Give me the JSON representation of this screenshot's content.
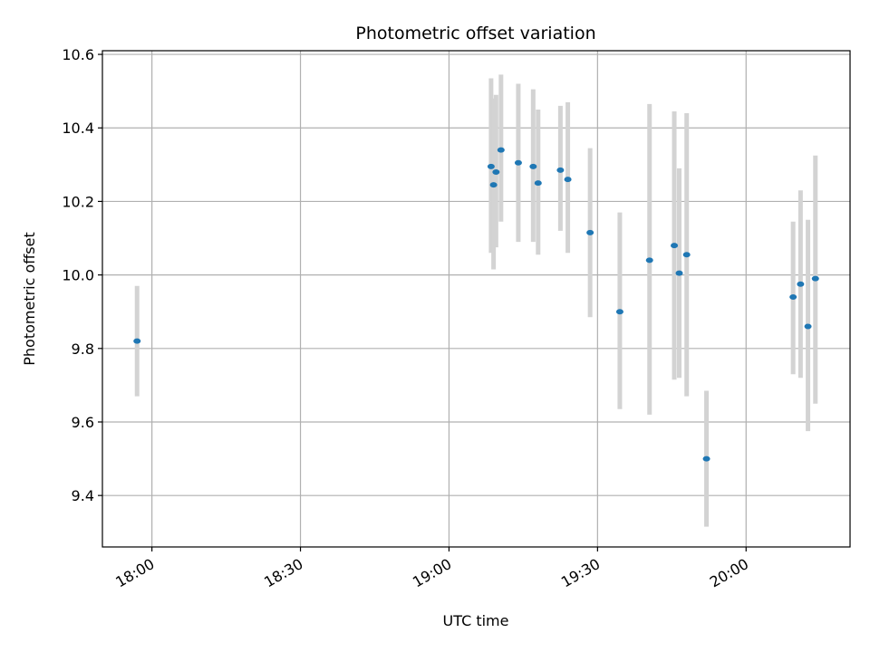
{
  "chart_data": {
    "type": "scatter",
    "title": "Photometric offset variation",
    "xlabel": "UTC time",
    "ylabel": "Photometric offset",
    "xlim": [
      "17:50",
      "20:21"
    ],
    "ylim": [
      9.26,
      10.61
    ],
    "x_ticks": [
      "18:00",
      "18:30",
      "19:00",
      "19:30",
      "20:00"
    ],
    "y_ticks": [
      "9.4",
      "9.6",
      "9.8",
      "10.0",
      "10.2",
      "10.4",
      "10.6"
    ],
    "grid": true,
    "marker_color": "#1f77b4",
    "errorbar_color": "#d3d3d3",
    "points": [
      {
        "x": "17:57",
        "y": 9.82,
        "ylow": 9.67,
        "yhigh": 9.97
      },
      {
        "x": "19:08:30",
        "y": 10.295,
        "ylow": 10.06,
        "yhigh": 10.535
      },
      {
        "x": "19:09",
        "y": 10.245,
        "ylow": 10.015,
        "yhigh": 10.48
      },
      {
        "x": "19:09:30",
        "y": 10.28,
        "ylow": 10.075,
        "yhigh": 10.49
      },
      {
        "x": "19:10:30",
        "y": 10.34,
        "ylow": 10.145,
        "yhigh": 10.545
      },
      {
        "x": "19:14",
        "y": 10.305,
        "ylow": 10.09,
        "yhigh": 10.52
      },
      {
        "x": "19:17",
        "y": 10.295,
        "ylow": 10.09,
        "yhigh": 10.505
      },
      {
        "x": "19:18",
        "y": 10.25,
        "ylow": 10.055,
        "yhigh": 10.45
      },
      {
        "x": "19:22:30",
        "y": 10.285,
        "ylow": 10.12,
        "yhigh": 10.46
      },
      {
        "x": "19:24",
        "y": 10.26,
        "ylow": 10.06,
        "yhigh": 10.47
      },
      {
        "x": "19:28:30",
        "y": 10.115,
        "ylow": 9.885,
        "yhigh": 10.345
      },
      {
        "x": "19:34:30",
        "y": 9.9,
        "ylow": 9.635,
        "yhigh": 10.17
      },
      {
        "x": "19:40:30",
        "y": 10.04,
        "ylow": 9.62,
        "yhigh": 10.465
      },
      {
        "x": "19:45:30",
        "y": 10.08,
        "ylow": 9.715,
        "yhigh": 10.445
      },
      {
        "x": "19:46:30",
        "y": 10.005,
        "ylow": 9.72,
        "yhigh": 10.29
      },
      {
        "x": "19:48",
        "y": 10.055,
        "ylow": 9.67,
        "yhigh": 10.44
      },
      {
        "x": "19:52",
        "y": 9.5,
        "ylow": 9.315,
        "yhigh": 9.685
      },
      {
        "x": "20:09:30",
        "y": 9.94,
        "ylow": 9.73,
        "yhigh": 10.145
      },
      {
        "x": "20:11",
        "y": 9.975,
        "ylow": 9.72,
        "yhigh": 10.23
      },
      {
        "x": "20:12:30",
        "y": 9.86,
        "ylow": 9.575,
        "yhigh": 10.15
      },
      {
        "x": "20:14",
        "y": 9.99,
        "ylow": 9.65,
        "yhigh": 10.325
      }
    ]
  }
}
